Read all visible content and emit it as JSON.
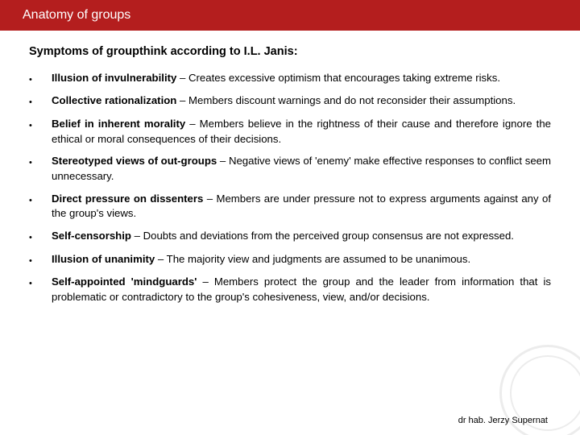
{
  "header": {
    "title": "Anatomy of groups"
  },
  "subtitle": "Symptoms of groupthink according to I.L. Janis:",
  "items": [
    {
      "term": "Illusion of invulnerability",
      "desc": " – Creates excessive optimism that encourages taking extreme risks."
    },
    {
      "term": "Collective rationalization",
      "desc": " – Members discount warnings and do not reconsider their assumptions."
    },
    {
      "term": "Belief in inherent morality",
      "desc": " – Members believe in the rightness of their cause and therefore ignore the ethical or moral consequences of their decisions."
    },
    {
      "term": "Stereotyped views of out-groups",
      "desc": " – Negative views of 'enemy' make effective responses to conflict seem unnecessary."
    },
    {
      "term": "Direct pressure on dissenters",
      "desc": " – Members are under pressure not to express arguments against any of the group's views."
    },
    {
      "term": "Self-censorship",
      "desc": " – Doubts and deviations from the perceived group consensus are not expressed."
    },
    {
      "term": "Illusion of unanimity",
      "desc": " – The majority view and judgments are assumed to be unanimous."
    },
    {
      "term": "Self-appointed 'mindguards'",
      "desc": " – Members protect the group and the leader from information that is problematic or contradictory to the group's cohesiveness, view, and/or decisions."
    }
  ],
  "footer": {
    "author": "dr hab. Jerzy Supernat"
  },
  "colors": {
    "header_bg": "#b41e1e",
    "header_text": "#ffffff",
    "body_text": "#000000",
    "background": "#ffffff"
  }
}
